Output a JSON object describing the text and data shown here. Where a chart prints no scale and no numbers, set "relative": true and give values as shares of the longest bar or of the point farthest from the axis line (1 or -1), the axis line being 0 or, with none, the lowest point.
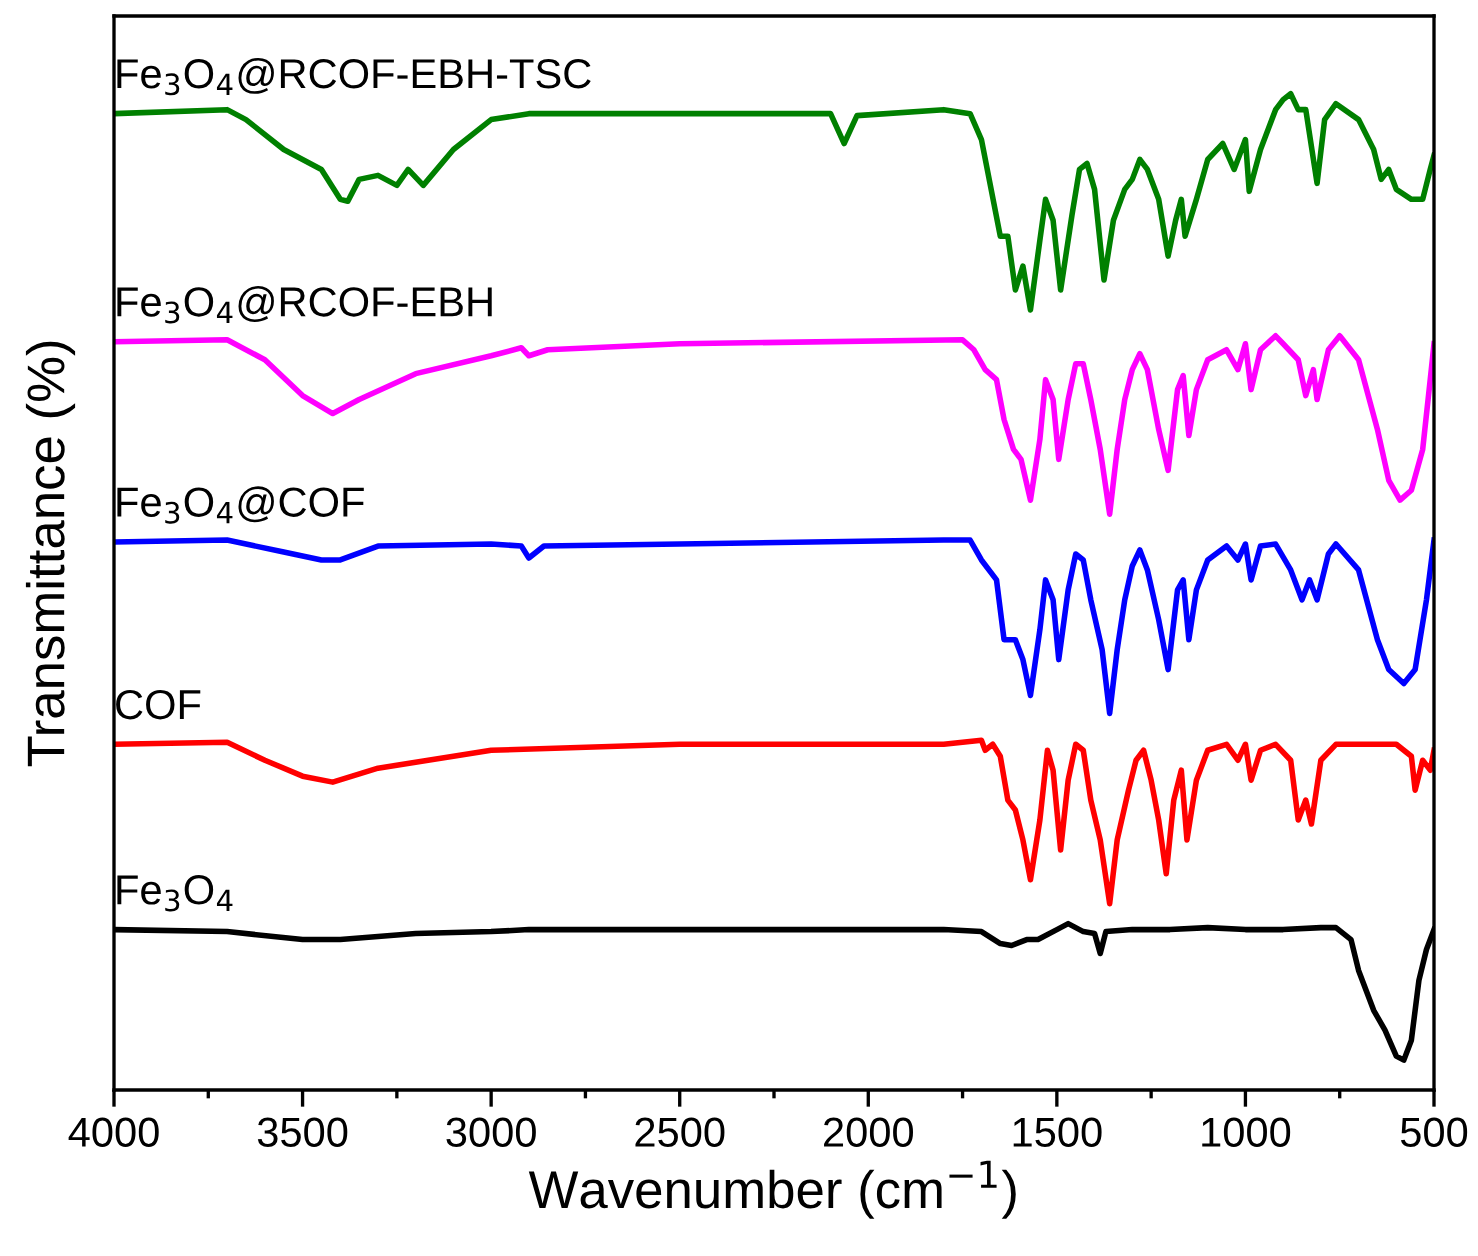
{
  "chart_data": {
    "type": "line",
    "relative": true,
    "xlabel": "Wavenumber (cm$^{−1}$)",
    "ylabel": "Transmittance (%)",
    "xlim": [
      4000,
      500
    ],
    "xticks": [
      4000,
      3500,
      3000,
      2500,
      2000,
      1500,
      1000,
      500
    ],
    "tick_labels": "x",
    "grid": false,
    "legend": false,
    "marker": "none",
    "line_style": "solid",
    "series": [
      {
        "name": "Fe$_{3}$O$_{4}$@RCOF-EBH-TSC",
        "color": "#008000",
        "x": [
          4000,
          3700,
          3650,
          3550,
          3450,
          3400,
          3380,
          3350,
          3300,
          3250,
          3220,
          3180,
          3100,
          3000,
          2900,
          2500,
          2100,
          2064,
          2030,
          1800,
          1730,
          1700,
          1650,
          1630,
          1610,
          1590,
          1570,
          1545,
          1530,
          1510,
          1490,
          1460,
          1440,
          1420,
          1400,
          1375,
          1350,
          1320,
          1300,
          1280,
          1260,
          1230,
          1205,
          1185,
          1170,
          1160,
          1130,
          1100,
          1060,
          1030,
          1000,
          990,
          960,
          920,
          900,
          880,
          860,
          840,
          810,
          790,
          760,
          700,
          660,
          640,
          620,
          600,
          560,
          530,
          510,
          500
        ],
        "values": [
          0.98,
          0.984,
          0.974,
          0.944,
          0.924,
          0.894,
          0.892,
          0.914,
          0.918,
          0.908,
          0.924,
          0.908,
          0.944,
          0.974,
          0.98,
          0.98,
          0.98,
          0.95,
          0.978,
          0.984,
          0.98,
          0.954,
          0.857,
          0.857,
          0.803,
          0.827,
          0.783,
          0.853,
          0.894,
          0.873,
          0.803,
          0.878,
          0.924,
          0.93,
          0.904,
          0.813,
          0.873,
          0.904,
          0.914,
          0.934,
          0.924,
          0.894,
          0.837,
          0.873,
          0.894,
          0.857,
          0.894,
          0.934,
          0.95,
          0.924,
          0.954,
          0.902,
          0.944,
          0.984,
          0.994,
          1.0,
          0.984,
          0.984,
          0.91,
          0.974,
          0.99,
          0.974,
          0.944,
          0.914,
          0.924,
          0.904,
          0.894,
          0.894,
          0.924,
          0.938
        ]
      },
      {
        "name": "Fe$_{3}$O$_{4}$@RCOF-EBH",
        "color": "#ff00ff",
        "x": [
          4000,
          3700,
          3600,
          3500,
          3420,
          3350,
          3200,
          3000,
          2920,
          2900,
          2850,
          2500,
          1750,
          1720,
          1690,
          1660,
          1640,
          1615,
          1595,
          1570,
          1545,
          1530,
          1510,
          1495,
          1470,
          1450,
          1430,
          1410,
          1385,
          1360,
          1340,
          1320,
          1300,
          1280,
          1260,
          1230,
          1205,
          1180,
          1165,
          1150,
          1130,
          1100,
          1050,
          1020,
          1000,
          985,
          960,
          920,
          900,
          860,
          840,
          820,
          810,
          780,
          750,
          700,
          650,
          620,
          590,
          560,
          530,
          510,
          500
        ],
        "values": [
          0.751,
          0.753,
          0.733,
          0.697,
          0.679,
          0.693,
          0.719,
          0.737,
          0.745,
          0.737,
          0.743,
          0.749,
          0.753,
          0.743,
          0.723,
          0.713,
          0.673,
          0.643,
          0.633,
          0.592,
          0.653,
          0.713,
          0.693,
          0.633,
          0.693,
          0.729,
          0.729,
          0.693,
          0.643,
          0.578,
          0.643,
          0.693,
          0.723,
          0.739,
          0.723,
          0.663,
          0.622,
          0.703,
          0.717,
          0.657,
          0.703,
          0.733,
          0.743,
          0.723,
          0.749,
          0.703,
          0.743,
          0.757,
          0.749,
          0.733,
          0.697,
          0.723,
          0.693,
          0.743,
          0.757,
          0.733,
          0.663,
          0.612,
          0.592,
          0.602,
          0.643,
          0.713,
          0.749
        ]
      },
      {
        "name": "Fe$_{3}$O$_{4}$@COF",
        "color": "#0000ff",
        "x": [
          4000,
          3700,
          3550,
          3450,
          3400,
          3300,
          3000,
          2920,
          2900,
          2860,
          2500,
          1800,
          1730,
          1700,
          1660,
          1640,
          1610,
          1590,
          1570,
          1545,
          1530,
          1510,
          1495,
          1470,
          1450,
          1430,
          1410,
          1380,
          1360,
          1340,
          1320,
          1300,
          1280,
          1260,
          1230,
          1205,
          1180,
          1165,
          1150,
          1130,
          1100,
          1050,
          1020,
          1000,
          985,
          960,
          920,
          880,
          850,
          830,
          810,
          780,
          760,
          700,
          650,
          620,
          580,
          550,
          520,
          500
        ],
        "values": [
          0.55,
          0.552,
          0.54,
          0.532,
          0.532,
          0.546,
          0.548,
          0.546,
          0.534,
          0.546,
          0.548,
          0.552,
          0.552,
          0.532,
          0.512,
          0.452,
          0.452,
          0.432,
          0.396,
          0.462,
          0.512,
          0.492,
          0.432,
          0.502,
          0.538,
          0.532,
          0.492,
          0.442,
          0.378,
          0.442,
          0.492,
          0.526,
          0.542,
          0.522,
          0.472,
          0.422,
          0.502,
          0.512,
          0.452,
          0.502,
          0.532,
          0.546,
          0.532,
          0.548,
          0.512,
          0.546,
          0.548,
          0.522,
          0.492,
          0.512,
          0.492,
          0.538,
          0.548,
          0.522,
          0.452,
          0.422,
          0.408,
          0.422,
          0.492,
          0.552
        ]
      },
      {
        "name": "COF",
        "color": "#ff0000",
        "x": [
          4000,
          3700,
          3600,
          3500,
          3420,
          3300,
          3100,
          3000,
          2500,
          1800,
          1700,
          1690,
          1670,
          1650,
          1630,
          1610,
          1590,
          1570,
          1545,
          1525,
          1510,
          1490,
          1470,
          1450,
          1430,
          1410,
          1385,
          1360,
          1340,
          1310,
          1290,
          1270,
          1250,
          1230,
          1210,
          1190,
          1170,
          1155,
          1130,
          1100,
          1050,
          1020,
          1000,
          985,
          960,
          920,
          880,
          860,
          840,
          825,
          800,
          760,
          600,
          560,
          550,
          530,
          510,
          500
        ],
        "values": [
          0.347,
          0.349,
          0.331,
          0.315,
          0.309,
          0.323,
          0.335,
          0.341,
          0.347,
          0.347,
          0.351,
          0.341,
          0.347,
          0.335,
          0.291,
          0.281,
          0.251,
          0.211,
          0.271,
          0.341,
          0.321,
          0.241,
          0.311,
          0.347,
          0.341,
          0.291,
          0.251,
          0.187,
          0.251,
          0.301,
          0.331,
          0.341,
          0.311,
          0.271,
          0.217,
          0.291,
          0.321,
          0.251,
          0.311,
          0.341,
          0.347,
          0.331,
          0.347,
          0.311,
          0.341,
          0.347,
          0.331,
          0.271,
          0.291,
          0.267,
          0.331,
          0.347,
          0.347,
          0.335,
          0.301,
          0.331,
          0.321,
          0.341
        ]
      },
      {
        "name": "Fe$_{3}$O$_{4}$",
        "color": "#000000",
        "x": [
          4000,
          3700,
          3500,
          3400,
          3200,
          3000,
          2900,
          2500,
          1800,
          1700,
          1650,
          1620,
          1580,
          1550,
          1500,
          1470,
          1430,
          1400,
          1385,
          1370,
          1300,
          1200,
          1100,
          1000,
          900,
          800,
          760,
          720,
          700,
          660,
          630,
          600,
          580,
          560,
          540,
          520,
          500
        ],
        "values": [
          0.161,
          0.159,
          0.151,
          0.151,
          0.157,
          0.159,
          0.161,
          0.161,
          0.161,
          0.159,
          0.147,
          0.145,
          0.151,
          0.151,
          0.161,
          0.167,
          0.159,
          0.157,
          0.137,
          0.159,
          0.161,
          0.161,
          0.163,
          0.161,
          0.161,
          0.163,
          0.163,
          0.151,
          0.12,
          0.08,
          0.06,
          0.034,
          0.03,
          0.05,
          0.11,
          0.141,
          0.161
        ]
      }
    ]
  }
}
